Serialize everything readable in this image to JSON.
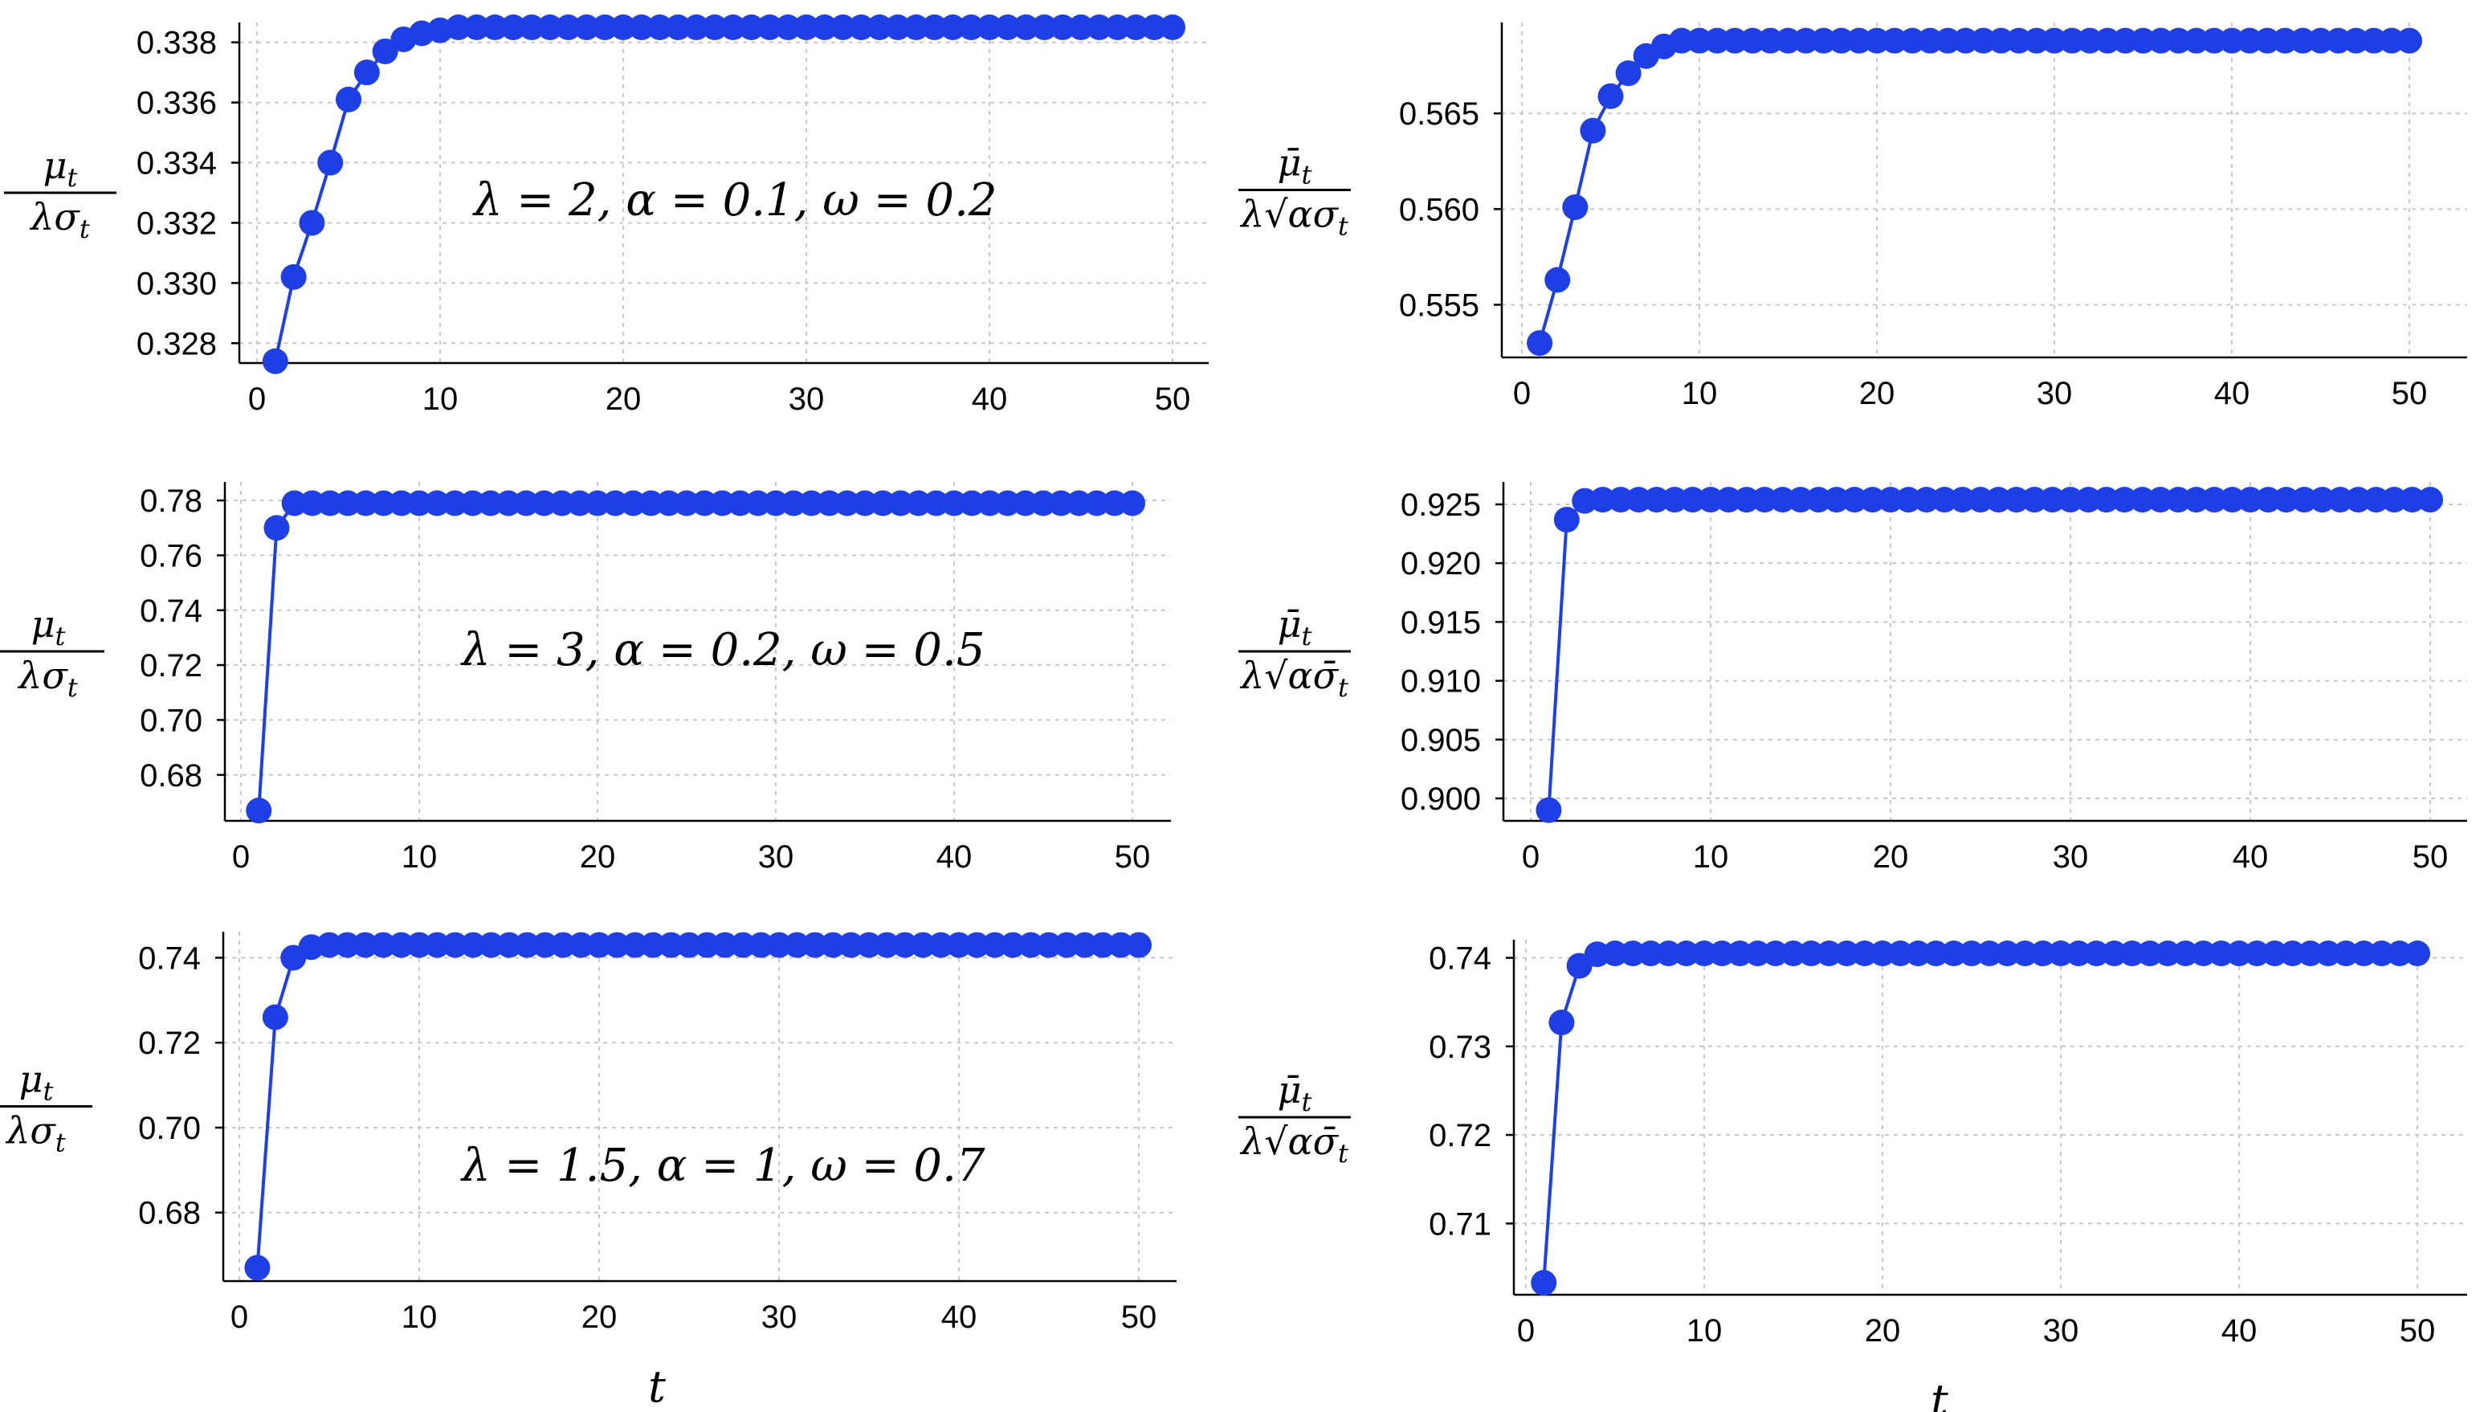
{
  "chart_data": [
    {
      "type": "line",
      "annotation": "λ = 2, α = 0.1, ω = 0.2",
      "ylabel": {
        "num": "μ",
        "num_sub": "t",
        "den": "λσ",
        "den_sub": "t"
      },
      "xlabel": "",
      "xlim": [
        0,
        50
      ],
      "ylim": [
        0.3275,
        0.3385
      ],
      "xticks": [
        "0",
        "10",
        "20",
        "30",
        "40",
        "50"
      ],
      "yticks": [
        "0.328",
        "0.330",
        "0.332",
        "0.334",
        "0.336",
        "0.338"
      ],
      "color": "#1f3fe6",
      "series": [
        {
          "x": [
            1,
            2,
            3,
            4,
            5,
            6,
            7,
            8,
            9,
            10,
            11,
            12,
            13,
            14,
            15,
            16,
            17,
            18,
            19,
            20,
            21,
            22,
            23,
            24,
            25,
            26,
            27,
            28,
            29,
            30,
            31,
            32,
            33,
            34,
            35,
            36,
            37,
            38,
            39,
            40,
            41,
            42,
            43,
            44,
            45,
            46,
            47,
            48,
            49,
            50
          ],
          "values": [
            0.3274,
            0.3302,
            0.332,
            0.334,
            0.3361,
            0.337,
            0.3377,
            0.3381,
            0.3383,
            0.3384,
            0.3385,
            0.3385,
            0.3385,
            0.3385,
            0.3385,
            0.3385,
            0.3385,
            0.3385,
            0.3385,
            0.3385,
            0.3385,
            0.3385,
            0.3385,
            0.3385,
            0.3385,
            0.3385,
            0.3385,
            0.3385,
            0.3385,
            0.3385,
            0.3385,
            0.3385,
            0.3385,
            0.3385,
            0.3385,
            0.3385,
            0.3385,
            0.3385,
            0.3385,
            0.3385,
            0.3385,
            0.3385,
            0.3385,
            0.3385,
            0.3385,
            0.3385,
            0.3385,
            0.3385,
            0.3385,
            0.3385
          ]
        }
      ]
    },
    {
      "type": "line",
      "annotation": "",
      "ylabel": {
        "num": "μ̄",
        "num_sub": "t",
        "den": "λ√ασ",
        "den_sub": "t"
      },
      "xlabel": "",
      "xlim": [
        0,
        50
      ],
      "ylim": [
        0.5525,
        0.5695
      ],
      "xticks": [
        "0",
        "10",
        "20",
        "30",
        "40",
        "50"
      ],
      "yticks": [
        "0.555",
        "0.560",
        "0.565"
      ],
      "color": "#1f3fe6",
      "series": [
        {
          "x": [
            1,
            2,
            3,
            4,
            5,
            6,
            7,
            8,
            9,
            10,
            11,
            12,
            13,
            14,
            15,
            16,
            17,
            18,
            19,
            20,
            21,
            22,
            23,
            24,
            25,
            26,
            27,
            28,
            29,
            30,
            31,
            32,
            33,
            34,
            35,
            36,
            37,
            38,
            39,
            40,
            41,
            42,
            43,
            44,
            45,
            46,
            47,
            48,
            49,
            50
          ],
          "values": [
            0.553,
            0.5563,
            0.5601,
            0.5641,
            0.5659,
            0.5671,
            0.568,
            0.5685,
            0.5688,
            0.5688,
            0.5688,
            0.5688,
            0.5688,
            0.5688,
            0.5688,
            0.5688,
            0.5688,
            0.5688,
            0.5688,
            0.5688,
            0.5688,
            0.5688,
            0.5688,
            0.5688,
            0.5688,
            0.5688,
            0.5688,
            0.5688,
            0.5688,
            0.5688,
            0.5688,
            0.5688,
            0.5688,
            0.5688,
            0.5688,
            0.5688,
            0.5688,
            0.5688,
            0.5688,
            0.5688,
            0.5688,
            0.5688,
            0.5688,
            0.5688,
            0.5688,
            0.5688,
            0.5688,
            0.5688,
            0.5688,
            0.5688
          ]
        }
      ]
    },
    {
      "type": "line",
      "annotation": "λ = 3, α = 0.2, ω = 0.5",
      "ylabel": {
        "num": "μ",
        "num_sub": "t",
        "den": "λσ",
        "den_sub": "t"
      },
      "xlabel": "",
      "xlim": [
        0,
        50
      ],
      "ylim": [
        0.665,
        0.785
      ],
      "xticks": [
        "0",
        "10",
        "20",
        "30",
        "40",
        "50"
      ],
      "yticks": [
        "0.68",
        "0.70",
        "0.72",
        "0.74",
        "0.76",
        "0.78"
      ],
      "color": "#1f3fe6",
      "series": [
        {
          "x": [
            1,
            2,
            3,
            4,
            5,
            6,
            7,
            8,
            9,
            10,
            11,
            12,
            13,
            14,
            15,
            16,
            17,
            18,
            19,
            20,
            21,
            22,
            23,
            24,
            25,
            26,
            27,
            28,
            29,
            30,
            31,
            32,
            33,
            34,
            35,
            36,
            37,
            38,
            39,
            40,
            41,
            42,
            43,
            44,
            45,
            46,
            47,
            48,
            49,
            50
          ],
          "values": [
            0.667,
            0.77,
            0.779,
            0.779,
            0.779,
            0.779,
            0.779,
            0.779,
            0.779,
            0.779,
            0.779,
            0.779,
            0.779,
            0.779,
            0.779,
            0.779,
            0.779,
            0.779,
            0.779,
            0.779,
            0.779,
            0.779,
            0.779,
            0.779,
            0.779,
            0.779,
            0.779,
            0.779,
            0.779,
            0.779,
            0.779,
            0.779,
            0.779,
            0.779,
            0.779,
            0.779,
            0.779,
            0.779,
            0.779,
            0.779,
            0.779,
            0.779,
            0.779,
            0.779,
            0.779,
            0.779,
            0.779,
            0.779,
            0.779,
            0.779
          ]
        }
      ]
    },
    {
      "type": "line",
      "annotation": "",
      "ylabel": {
        "num": "μ̄",
        "num_sub": "t",
        "den": "λ√ασ̄",
        "den_sub": "t"
      },
      "xlabel": "",
      "xlim": [
        0,
        50
      ],
      "ylim": [
        0.8985,
        0.9265
      ],
      "xticks": [
        "0",
        "10",
        "20",
        "30",
        "40",
        "50"
      ],
      "yticks": [
        "0.900",
        "0.905",
        "0.910",
        "0.915",
        "0.920",
        "0.925"
      ],
      "color": "#1f3fe6",
      "series": [
        {
          "x": [
            1,
            2,
            3,
            4,
            5,
            6,
            7,
            8,
            9,
            10,
            11,
            12,
            13,
            14,
            15,
            16,
            17,
            18,
            19,
            20,
            21,
            22,
            23,
            24,
            25,
            26,
            27,
            28,
            29,
            30,
            31,
            32,
            33,
            34,
            35,
            36,
            37,
            38,
            39,
            40,
            41,
            42,
            43,
            44,
            45,
            46,
            47,
            48,
            49,
            50
          ],
          "values": [
            0.899,
            0.9237,
            0.9253,
            0.9254,
            0.9254,
            0.9254,
            0.9254,
            0.9254,
            0.9254,
            0.9254,
            0.9254,
            0.9254,
            0.9254,
            0.9254,
            0.9254,
            0.9254,
            0.9254,
            0.9254,
            0.9254,
            0.9254,
            0.9254,
            0.9254,
            0.9254,
            0.9254,
            0.9254,
            0.9254,
            0.9254,
            0.9254,
            0.9254,
            0.9254,
            0.9254,
            0.9254,
            0.9254,
            0.9254,
            0.9254,
            0.9254,
            0.9254,
            0.9254,
            0.9254,
            0.9254,
            0.9254,
            0.9254,
            0.9254,
            0.9254,
            0.9254,
            0.9254,
            0.9254,
            0.9254,
            0.9254,
            0.9254
          ]
        }
      ]
    },
    {
      "type": "line",
      "annotation": "λ = 1.5, α = 1, ω = 0.7",
      "ylabel": {
        "num": "μ",
        "num_sub": "t",
        "den": "λσ",
        "den_sub": "t"
      },
      "xlabel": "t",
      "xlim": [
        0,
        50
      ],
      "ylim": [
        0.665,
        0.745
      ],
      "xticks": [
        "0",
        "10",
        "20",
        "30",
        "40",
        "50"
      ],
      "yticks": [
        "0.68",
        "0.70",
        "0.72",
        "0.74"
      ],
      "color": "#1f3fe6",
      "series": [
        {
          "x": [
            1,
            2,
            3,
            4,
            5,
            6,
            7,
            8,
            9,
            10,
            11,
            12,
            13,
            14,
            15,
            16,
            17,
            18,
            19,
            20,
            21,
            22,
            23,
            24,
            25,
            26,
            27,
            28,
            29,
            30,
            31,
            32,
            33,
            34,
            35,
            36,
            37,
            38,
            39,
            40,
            41,
            42,
            43,
            44,
            45,
            46,
            47,
            48,
            49,
            50
          ],
          "values": [
            0.667,
            0.726,
            0.74,
            0.7425,
            0.743,
            0.743,
            0.743,
            0.743,
            0.743,
            0.743,
            0.743,
            0.743,
            0.743,
            0.743,
            0.743,
            0.743,
            0.743,
            0.743,
            0.743,
            0.743,
            0.743,
            0.743,
            0.743,
            0.743,
            0.743,
            0.743,
            0.743,
            0.743,
            0.743,
            0.743,
            0.743,
            0.743,
            0.743,
            0.743,
            0.743,
            0.743,
            0.743,
            0.743,
            0.743,
            0.743,
            0.743,
            0.743,
            0.743,
            0.743,
            0.743,
            0.743,
            0.743,
            0.743,
            0.743,
            0.743
          ]
        }
      ]
    },
    {
      "type": "line",
      "annotation": "",
      "ylabel": {
        "num": "μ̄",
        "num_sub": "t",
        "den": "λ√ασ̄",
        "den_sub": "t"
      },
      "xlabel": "t",
      "xlim": [
        0,
        50
      ],
      "ylim": [
        0.7025,
        0.7415
      ],
      "xticks": [
        "0",
        "10",
        "20",
        "30",
        "40",
        "50"
      ],
      "yticks": [
        "0.71",
        "0.72",
        "0.73",
        "0.74"
      ],
      "color": "#1f3fe6",
      "series": [
        {
          "x": [
            1,
            2,
            3,
            4,
            5,
            6,
            7,
            8,
            9,
            10,
            11,
            12,
            13,
            14,
            15,
            16,
            17,
            18,
            19,
            20,
            21,
            22,
            23,
            24,
            25,
            26,
            27,
            28,
            29,
            30,
            31,
            32,
            33,
            34,
            35,
            36,
            37,
            38,
            39,
            40,
            41,
            42,
            43,
            44,
            45,
            46,
            47,
            48,
            49,
            50
          ],
          "values": [
            0.7033,
            0.7327,
            0.7391,
            0.7404,
            0.7405,
            0.7405,
            0.7405,
            0.7405,
            0.7405,
            0.7405,
            0.7405,
            0.7405,
            0.7405,
            0.7405,
            0.7405,
            0.7405,
            0.7405,
            0.7405,
            0.7405,
            0.7405,
            0.7405,
            0.7405,
            0.7405,
            0.7405,
            0.7405,
            0.7405,
            0.7405,
            0.7405,
            0.7405,
            0.7405,
            0.7405,
            0.7405,
            0.7405,
            0.7405,
            0.7405,
            0.7405,
            0.7405,
            0.7405,
            0.7405,
            0.7405,
            0.7405,
            0.7405,
            0.7405,
            0.7405,
            0.7405,
            0.7405,
            0.7405,
            0.7405,
            0.7405,
            0.7405
          ]
        }
      ]
    }
  ]
}
